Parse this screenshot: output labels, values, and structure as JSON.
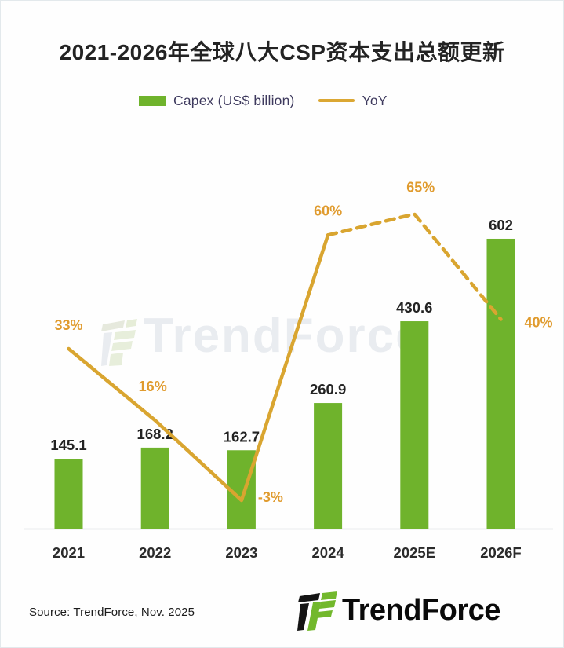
{
  "title": "2021-2026年全球八大CSP资本支出总额更新",
  "legend": {
    "capex_label": "Capex (US$ billion)",
    "yoy_label": "YoY"
  },
  "colors": {
    "bar_green": "#6fb32c",
    "line_orange": "#d9a530",
    "pct_label_orange": "#e09b2e",
    "value_label": "#232323",
    "axis_label": "#2b2b2b",
    "axis_line": "#d7dadc",
    "title_text": "#232323",
    "legend_text": "#3e3a5e"
  },
  "watermark": {
    "text": "TrendForce"
  },
  "source": {
    "text": "Source: TrendForce, Nov. 2025"
  },
  "brand": {
    "logo_text": "TrendForce"
  },
  "chart_data": {
    "type": "bar",
    "subtype": "bar-line-combo",
    "title": "2021-2026年全球八大CSP资本支出总额更新",
    "categories": [
      "2021",
      "2022",
      "2023",
      "2024",
      "2025E",
      "2026F"
    ],
    "series": [
      {
        "name": "Capex (US$ billion)",
        "type": "bar",
        "values": [
          145.1,
          168.2,
          162.7,
          260.9,
          430.6,
          602
        ],
        "value_labels": [
          "145.1",
          "168.2",
          "162.7",
          "260.9",
          "430.6",
          "602"
        ]
      },
      {
        "name": "YoY",
        "type": "line",
        "values": [
          33,
          16,
          -3,
          60,
          65,
          40
        ],
        "point_labels": [
          "33%",
          "16%",
          "-3%",
          "60%",
          "65%",
          "40%"
        ],
        "solid_segment_categories": [
          "2021",
          "2022",
          "2023",
          "2024"
        ],
        "dashed_segment_categories": [
          "2024",
          "2025E",
          "2026F"
        ]
      }
    ],
    "xlabel": "",
    "ylabel": "",
    "ylim": [
      0,
      650
    ],
    "grid": false,
    "legend_position": "top-center",
    "notes": "YoY line is solid 2021-2024 and dashed (forecast) 2024-2026F"
  }
}
